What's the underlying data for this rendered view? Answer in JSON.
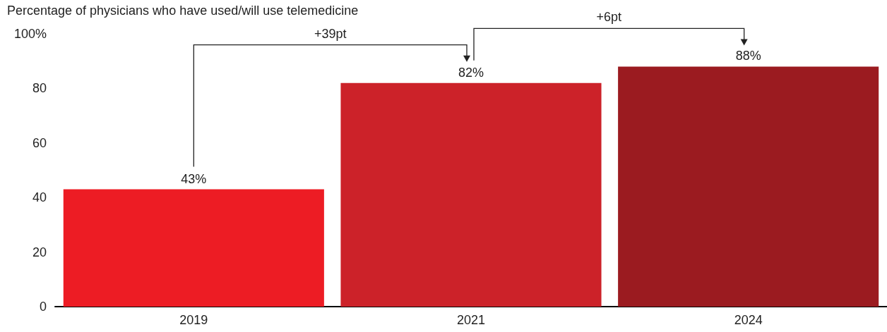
{
  "chart_data": {
    "type": "bar",
    "ylabel": "Percentage of physicians who have used/will use telemedicine",
    "categories": [
      "2019",
      "2021",
      "2024"
    ],
    "values": [
      43,
      82,
      88
    ],
    "colors": [
      "#ed1c24",
      "#cc2229",
      "#9b1b20"
    ],
    "value_labels": [
      "43%",
      "82%",
      "88%"
    ],
    "ylim": [
      0,
      100
    ],
    "yticks": [
      0,
      20,
      40,
      60,
      80,
      {
        "value": 100,
        "label": "100%"
      }
    ],
    "grid": false,
    "annotations": [
      "+39pt",
      "+6pt"
    ]
  }
}
